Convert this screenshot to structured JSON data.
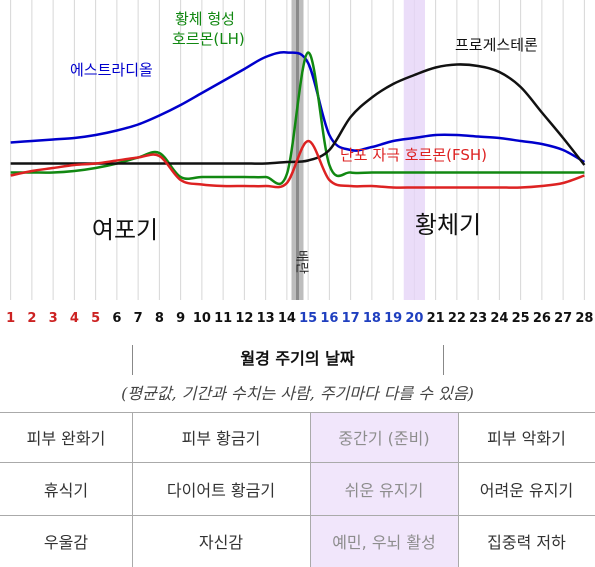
{
  "chart_data": {
    "type": "line",
    "x": [
      1,
      2,
      3,
      4,
      5,
      6,
      7,
      8,
      9,
      10,
      11,
      12,
      13,
      14,
      15,
      16,
      17,
      18,
      19,
      20,
      21,
      22,
      23,
      24,
      25,
      26,
      27,
      28
    ],
    "xlim": [
      0.5,
      28.5
    ],
    "ylim": [
      0,
      100
    ],
    "grid": true,
    "series": [
      {
        "name": "에스트라디올",
        "color": "#0000cc",
        "label": "에스트라디올",
        "values": [
          35,
          36,
          37,
          38,
          40,
          43,
          47,
          53,
          60,
          68,
          76,
          84,
          92,
          95,
          88,
          40,
          30,
          32,
          36,
          38,
          40,
          40,
          39,
          38,
          36,
          34,
          30,
          22
        ]
      },
      {
        "name": "황체 형성 호르몬(LH)",
        "color": "#118811",
        "label_line1": "황체 형성",
        "label_line2": "호르몬(LH)",
        "values": [
          15,
          15,
          15,
          16,
          18,
          21,
          25,
          28,
          12,
          12,
          12,
          12,
          12,
          14,
          95,
          20,
          15,
          15,
          15,
          15,
          15,
          15,
          15,
          15,
          15,
          15,
          15,
          15
        ]
      },
      {
        "name": "프로게스테론",
        "color": "#111111",
        "label": "프로게스테론",
        "values": [
          21,
          21,
          21,
          21,
          21,
          21,
          21,
          21,
          21,
          21,
          21,
          21,
          21,
          22,
          23,
          30,
          52,
          65,
          74,
          80,
          85,
          87,
          86,
          82,
          72,
          55,
          38,
          20
        ]
      },
      {
        "name": "난포 자극 호르몬(FSH)",
        "color": "#dd2222",
        "label": "난포 자극 호르몬(FSH)",
        "values": [
          13,
          16,
          18,
          20,
          21,
          23,
          25,
          26,
          10,
          7,
          6,
          6,
          6,
          8,
          36,
          10,
          6,
          6,
          5,
          5,
          5,
          5,
          5,
          5,
          5,
          6,
          8,
          13
        ]
      }
    ],
    "phase_labels": {
      "follicular": "여포기",
      "luteal": "황체기",
      "ovulation": "배란"
    },
    "day_colors": [
      "#cc2222",
      "#cc2222",
      "#cc2222",
      "#cc2222",
      "#cc2222",
      "#111111",
      "#111111",
      "#111111",
      "#111111",
      "#111111",
      "#111111",
      "#111111",
      "#111111",
      "#111111",
      "#1f3fbf",
      "#1f3fbf",
      "#1f3fbf",
      "#1f3fbf",
      "#1f3fbf",
      "#1f3fbf",
      "#111111",
      "#111111",
      "#111111",
      "#111111",
      "#111111",
      "#111111",
      "#111111",
      "#111111"
    ]
  },
  "caption": "월경 주기의 날짜",
  "subcaption": "(평균값, 기간과 수치는 사람, 주기마다 다를 수 있음)",
  "table": [
    [
      "피부 완화기",
      "피부 황금기",
      "중간기 (준비)",
      "피부 악화기"
    ],
    [
      "휴식기",
      "다이어트 황금기",
      "쉬운 유지기",
      "어려운 유지기"
    ],
    [
      "우울감",
      "자신감",
      "예민, 우뇌 활성",
      "집중력 저하"
    ]
  ]
}
